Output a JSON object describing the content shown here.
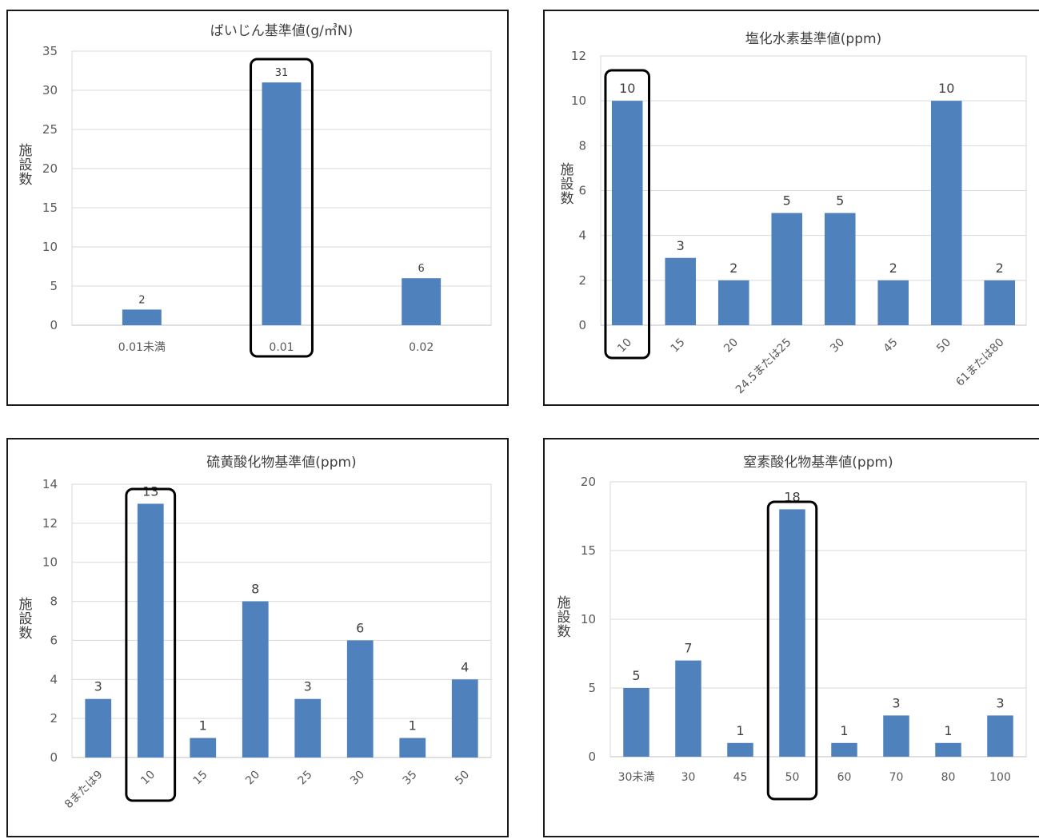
{
  "colors": {
    "bar": "#4f81bd",
    "grid": "#d9d9d9",
    "axis": "#bfbfbf",
    "highlight": "#000000",
    "frame": "#1a1a1a"
  },
  "chart_data": [
    {
      "type": "bar",
      "title": "ばいじん基準値(g/㎥N)",
      "ylabel": "施設数",
      "xlabel": "",
      "categories": [
        "0.01未満",
        "0.01",
        "0.02"
      ],
      "values": [
        2,
        31,
        6
      ],
      "ylim": [
        0,
        35
      ],
      "yticks": [
        0,
        5,
        10,
        15,
        20,
        25,
        30,
        35
      ],
      "highlight_index": 1,
      "rotated_x_labels": false,
      "grid": true,
      "legend": "none"
    },
    {
      "type": "bar",
      "title": "塩化水素基準値(ppm)",
      "ylabel": "施設数",
      "xlabel": "",
      "categories": [
        "10",
        "15",
        "20",
        "24.5または25",
        "30",
        "45",
        "50",
        "61または80"
      ],
      "values": [
        10,
        3,
        2,
        5,
        5,
        2,
        10,
        2
      ],
      "ylim": [
        0,
        12
      ],
      "yticks": [
        0,
        2,
        4,
        6,
        8,
        10,
        12
      ],
      "highlight_index": 0,
      "rotated_x_labels": true,
      "grid": true,
      "legend": "none"
    },
    {
      "type": "bar",
      "title": "硫黄酸化物基準値(ppm)",
      "ylabel": "施設数",
      "xlabel": "",
      "categories": [
        "8または9",
        "10",
        "15",
        "20",
        "25",
        "30",
        "35",
        "50"
      ],
      "values": [
        3,
        13,
        1,
        8,
        3,
        6,
        1,
        4
      ],
      "ylim": [
        0,
        14
      ],
      "yticks": [
        0,
        2,
        4,
        6,
        8,
        10,
        12,
        14
      ],
      "highlight_index": 1,
      "rotated_x_labels": true,
      "grid": true,
      "legend": "none"
    },
    {
      "type": "bar",
      "title": "窒素酸化物基準値(ppm)",
      "ylabel": "施設数",
      "xlabel": "",
      "categories": [
        "30未満",
        "30",
        "45",
        "50",
        "60",
        "70",
        "80",
        "100"
      ],
      "values": [
        5,
        7,
        1,
        18,
        1,
        3,
        1,
        3
      ],
      "ylim": [
        0,
        20
      ],
      "yticks": [
        0,
        5,
        10,
        15,
        20
      ],
      "highlight_index": 3,
      "rotated_x_labels": false,
      "grid": true,
      "legend": "none"
    }
  ]
}
